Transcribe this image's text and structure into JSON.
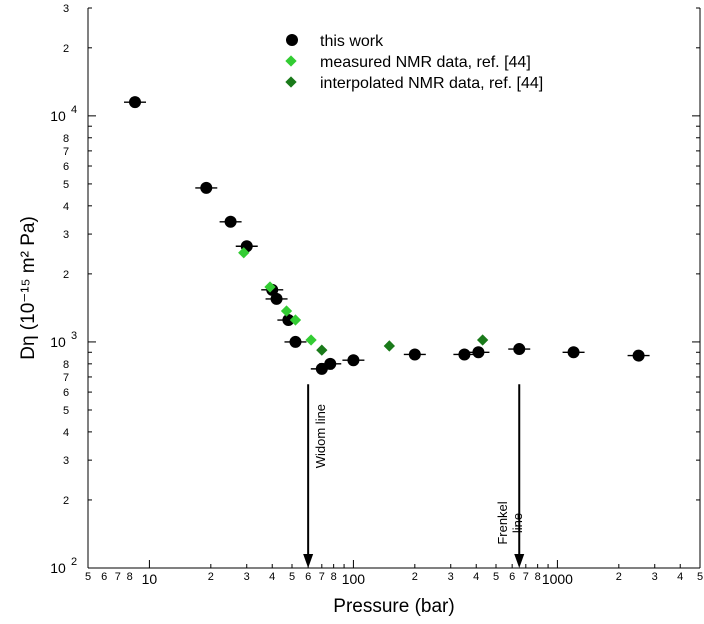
{
  "chart_data": {
    "type": "scatter",
    "xlabel": "Pressure (bar)",
    "ylabel": "Dη (10⁻¹⁵ m² Pa)",
    "x_scale": "log",
    "y_scale": "log",
    "xlim": [
      5,
      5000
    ],
    "ylim": [
      100,
      30000
    ],
    "legend_position": "top-center",
    "colors": {
      "this_work": "#000000",
      "measured": "#33cc33",
      "interpolated": "#1a7a1a"
    },
    "series": [
      {
        "name": "this work",
        "marker": "circle",
        "points": [
          {
            "x": 8.5,
            "y": 11500
          },
          {
            "x": 19,
            "y": 4800
          },
          {
            "x": 25,
            "y": 3400
          },
          {
            "x": 30,
            "y": 2650
          },
          {
            "x": 40,
            "y": 1700
          },
          {
            "x": 42,
            "y": 1550
          },
          {
            "x": 48,
            "y": 1250
          },
          {
            "x": 52,
            "y": 1000
          },
          {
            "x": 70,
            "y": 760
          },
          {
            "x": 77,
            "y": 800
          },
          {
            "x": 100,
            "y": 830
          },
          {
            "x": 200,
            "y": 880
          },
          {
            "x": 350,
            "y": 880
          },
          {
            "x": 410,
            "y": 900
          },
          {
            "x": 650,
            "y": 930
          },
          {
            "x": 1200,
            "y": 900
          },
          {
            "x": 2500,
            "y": 870
          }
        ]
      },
      {
        "name": "measured NMR data, ref. [44]",
        "marker": "diamond",
        "points": [
          {
            "x": 29,
            "y": 2480
          },
          {
            "x": 39,
            "y": 1750
          },
          {
            "x": 47,
            "y": 1370
          },
          {
            "x": 52,
            "y": 1250
          },
          {
            "x": 62,
            "y": 1020
          }
        ]
      },
      {
        "name": "interpolated NMR data, ref. [44]",
        "marker": "diamond",
        "points": [
          {
            "x": 70,
            "y": 920
          },
          {
            "x": 150,
            "y": 960
          },
          {
            "x": 430,
            "y": 1020
          }
        ]
      }
    ],
    "x_decade_labels": [
      {
        "x": 10,
        "text": "10"
      },
      {
        "x": 100,
        "text": "100"
      },
      {
        "x": 1000,
        "text": "1000"
      }
    ],
    "x_minor_labels": [
      {
        "x": 5,
        "text": "5"
      },
      {
        "x": 6,
        "text": "6"
      },
      {
        "x": 7,
        "text": "7"
      },
      {
        "x": 8,
        "text": "8"
      },
      {
        "x": 20,
        "text": "2"
      },
      {
        "x": 30,
        "text": "3"
      },
      {
        "x": 40,
        "text": "4"
      },
      {
        "x": 50,
        "text": "5"
      },
      {
        "x": 60,
        "text": "6"
      },
      {
        "x": 70,
        "text": "7"
      },
      {
        "x": 80,
        "text": "8"
      },
      {
        "x": 200,
        "text": "2"
      },
      {
        "x": 300,
        "text": "3"
      },
      {
        "x": 400,
        "text": "4"
      },
      {
        "x": 500,
        "text": "5"
      },
      {
        "x": 600,
        "text": "6"
      },
      {
        "x": 700,
        "text": "7"
      },
      {
        "x": 800,
        "text": "8"
      },
      {
        "x": 2000,
        "text": "2"
      },
      {
        "x": 3000,
        "text": "3"
      },
      {
        "x": 4000,
        "text": "4"
      },
      {
        "x": 5000,
        "text": "5"
      }
    ],
    "y_decade_labels": [
      {
        "y": 100,
        "base": "10",
        "exp": "2"
      },
      {
        "y": 1000,
        "base": "10",
        "exp": "3"
      },
      {
        "y": 10000,
        "base": "10",
        "exp": "4"
      }
    ],
    "y_minor_labels": [
      {
        "y": 200,
        "text": "2"
      },
      {
        "y": 300,
        "text": "3"
      },
      {
        "y": 400,
        "text": "4"
      },
      {
        "y": 500,
        "text": "5"
      },
      {
        "y": 600,
        "text": "6"
      },
      {
        "y": 700,
        "text": "7"
      },
      {
        "y": 800,
        "text": "8"
      },
      {
        "y": 2000,
        "text": "2"
      },
      {
        "y": 3000,
        "text": "3"
      },
      {
        "y": 4000,
        "text": "4"
      },
      {
        "y": 5000,
        "text": "5"
      },
      {
        "y": 6000,
        "text": "6"
      },
      {
        "y": 7000,
        "text": "7"
      },
      {
        "y": 8000,
        "text": "8"
      },
      {
        "y": 20000,
        "text": "2"
      },
      {
        "y": 30000,
        "text": "3"
      }
    ],
    "annotations": [
      {
        "label": "Widom line",
        "x": 60,
        "y_top": 650,
        "y_bottom": 100
      },
      {
        "label": "Frenkel line",
        "x": 650,
        "y_top": 650,
        "y_bottom": 100
      }
    ]
  }
}
